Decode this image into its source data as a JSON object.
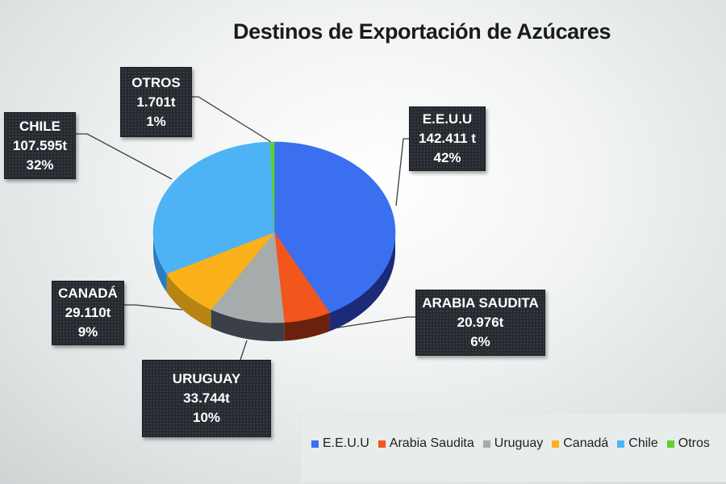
{
  "title": "Destinos de Exportación de Azúcares",
  "chart_data": {
    "type": "pie",
    "style": "3d",
    "title": "Destinos de Exportación de Azúcares",
    "unit": "t",
    "categories": [
      "E.E.U.U",
      "Arabia Saudita",
      "Uruguay",
      "Canadá",
      "Chile",
      "Otros"
    ],
    "values": [
      142411,
      20976,
      33744,
      29110,
      107595,
      1701
    ],
    "percentages": [
      42,
      6,
      10,
      9,
      32,
      1
    ],
    "colors": [
      "#3a6ff0",
      "#f2561d",
      "#a5acab",
      "#fbb11a",
      "#4db3f5",
      "#5dd12e"
    ],
    "side_colors": [
      "#1c2a78",
      "#6a220c",
      "#3b4047",
      "#b88411",
      "#2a7bc2",
      "#2d8a15"
    ],
    "start_angle_deg": 0,
    "direction": "clockwise",
    "legend_position": "bottom-right"
  },
  "labels": [
    {
      "name": "E.E.U.U",
      "value": "142.411 t",
      "pct": "42%"
    },
    {
      "name": "ARABIA SAUDITA",
      "value": "20.976t",
      "pct": "6%"
    },
    {
      "name": "URUGUAY",
      "value": "33.744t",
      "pct": "10%"
    },
    {
      "name": "CANADÁ",
      "value": "29.110t",
      "pct": "9%"
    },
    {
      "name": "CHILE",
      "value": "107.595t",
      "pct": "32%"
    },
    {
      "name": "OTROS",
      "value": "1.701t",
      "pct": "1%"
    }
  ],
  "legend": [
    {
      "label": "E.E.U.U",
      "color": "#3a6ff0"
    },
    {
      "label": "Arabia Saudita",
      "color": "#f2561d"
    },
    {
      "label": "Uruguay",
      "color": "#a5acab"
    },
    {
      "label": "Canadá",
      "color": "#fbb11a"
    },
    {
      "label": "Chile",
      "color": "#4db3f5"
    },
    {
      "label": "Otros",
      "color": "#5dd12e"
    }
  ]
}
